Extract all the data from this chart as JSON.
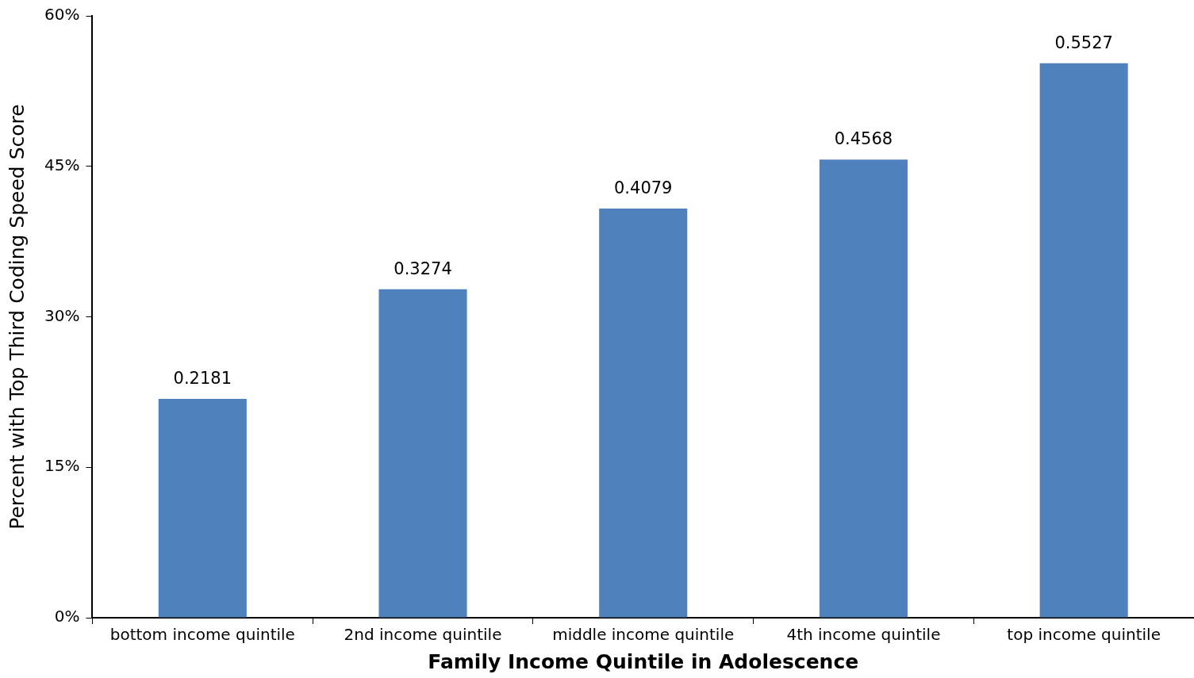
{
  "chart_data": {
    "type": "bar",
    "xlabel": "Family Income Quintile in Adolescence",
    "ylabel": "Percent with Top Third Coding Speed Score",
    "categories": [
      "bottom income quintile",
      "2nd income quintile",
      "middle income quintile",
      "4th income quintile",
      "top income quintile"
    ],
    "values": [
      0.2181,
      0.3274,
      0.4079,
      0.4568,
      0.5527
    ],
    "color": "#4f81bd",
    "ylim": [
      0,
      0.6
    ],
    "yticks": [
      {
        "value": 0,
        "label": "0%"
      },
      {
        "value": 0.15,
        "label": "15%"
      },
      {
        "value": 0.3,
        "label": "30%"
      },
      {
        "value": 0.45,
        "label": "45%"
      },
      {
        "value": 0.6,
        "label": "60%"
      }
    ],
    "data_labels": true,
    "grid": false,
    "legend": false
  }
}
